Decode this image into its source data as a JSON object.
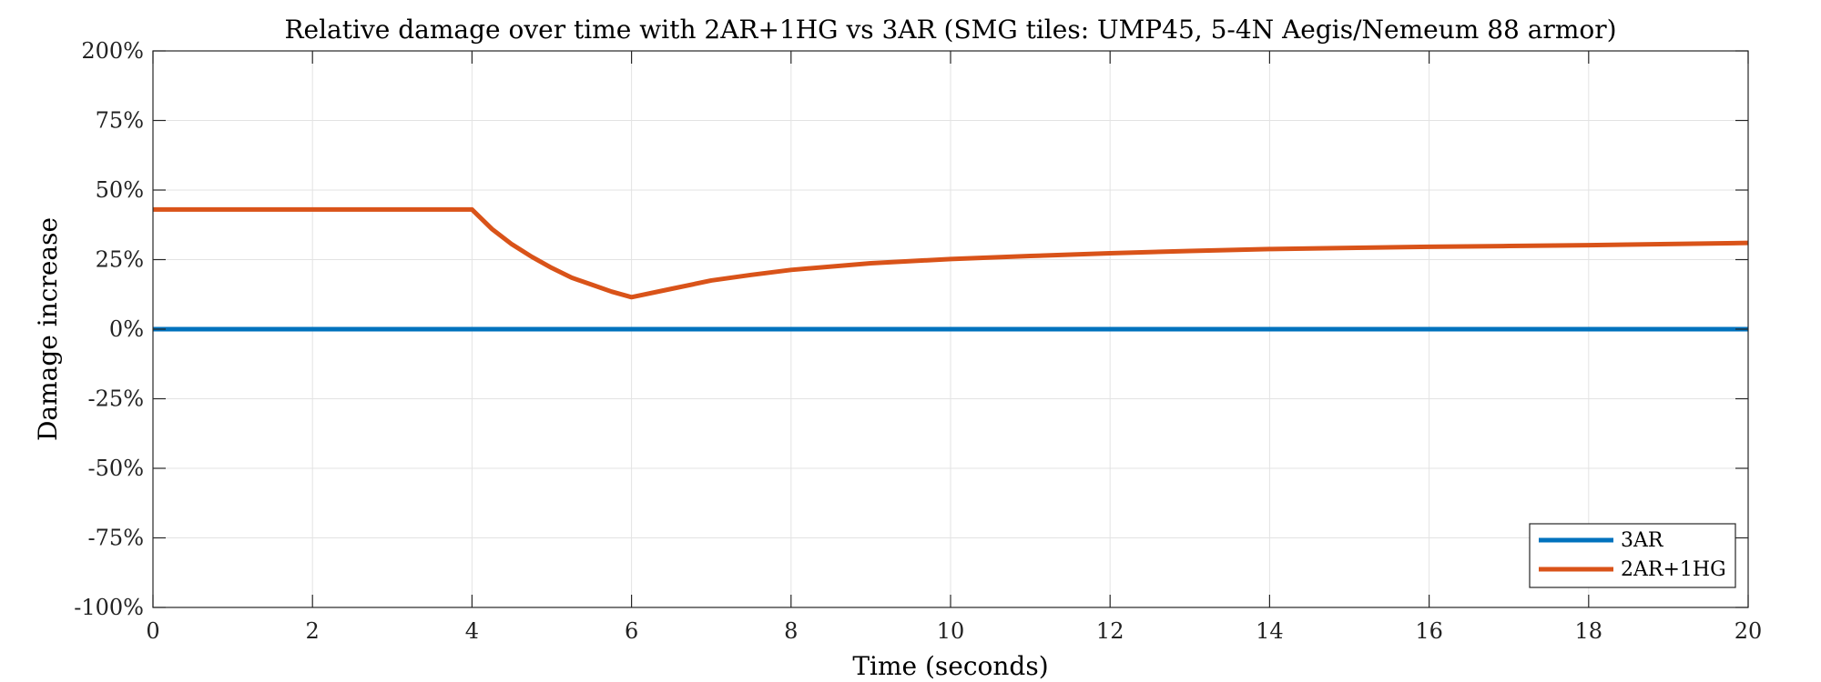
{
  "chart_data": {
    "type": "line",
    "title": "Relative damage over time with 2AR+1HG vs 3AR (SMG tiles: UMP45, 5-4N Aegis/Nemeum 88 armor)",
    "xlabel": "Time (seconds)",
    "ylabel": "Damage increase",
    "xlim": [
      0,
      20
    ],
    "ylim": [
      -100,
      200
    ],
    "x_ticks": [
      0,
      2,
      4,
      6,
      8,
      10,
      12,
      14,
      16,
      18,
      20
    ],
    "y_ticks": [
      {
        "value": -100,
        "label": "-100%"
      },
      {
        "value": -75,
        "label": "-75%"
      },
      {
        "value": -50,
        "label": "-50%"
      },
      {
        "value": -25,
        "label": "-25%"
      },
      {
        "value": 0,
        "label": "0%"
      },
      {
        "value": 25,
        "label": "25%"
      },
      {
        "value": 50,
        "label": "50%"
      },
      {
        "value": 75,
        "label": "75%"
      },
      {
        "value": 200,
        "label": "200%"
      }
    ],
    "grid": true,
    "legend_position": "bottom-right",
    "series": [
      {
        "name": "3AR",
        "color": "#0072BD",
        "x": [
          0,
          20
        ],
        "y": [
          0,
          0
        ]
      },
      {
        "name": "2AR+1HG",
        "color": "#D95319",
        "x": [
          0,
          4,
          4.25,
          4.5,
          4.75,
          5,
          5.25,
          5.5,
          5.75,
          6,
          6.5,
          7,
          7.5,
          8,
          9,
          10,
          11,
          12,
          13,
          14,
          15,
          16,
          17,
          18,
          19,
          20
        ],
        "y": [
          43,
          43,
          36,
          30.5,
          26,
          22,
          18.5,
          16,
          13.5,
          11.5,
          14.5,
          17.5,
          19.5,
          21.3,
          23.7,
          25.2,
          26.3,
          27.3,
          28.1,
          28.8,
          29.2,
          29.6,
          29.9,
          30.2,
          30.6,
          31
        ]
      }
    ]
  }
}
